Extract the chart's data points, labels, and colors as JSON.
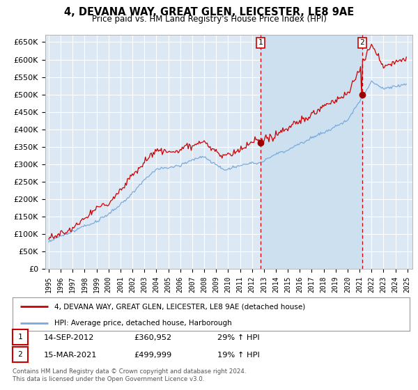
{
  "title": "4, DEVANA WAY, GREAT GLEN, LEICESTER, LE8 9AE",
  "subtitle": "Price paid vs. HM Land Registry's House Price Index (HPI)",
  "ylim": [
    0,
    670000
  ],
  "yticks": [
    0,
    50000,
    100000,
    150000,
    200000,
    250000,
    300000,
    350000,
    400000,
    450000,
    500000,
    550000,
    600000,
    650000
  ],
  "fig_bg_color": "#ffffff",
  "plot_bg_color": "#dce9f5",
  "shade_bg_color": "#cce0f0",
  "grid_color": "#ffffff",
  "sale1_date_num": 2012.708,
  "sale1_price": 360952,
  "sale1_label": "1",
  "sale2_date_num": 2021.208,
  "sale2_price": 499999,
  "sale2_label": "2",
  "legend_line1": "4, DEVANA WAY, GREAT GLEN, LEICESTER, LE8 9AE (detached house)",
  "legend_line2": "HPI: Average price, detached house, Harborough",
  "table_row1": [
    "1",
    "14-SEP-2012",
    "£360,952",
    "29% ↑ HPI"
  ],
  "table_row2": [
    "2",
    "15-MAR-2021",
    "£499,999",
    "19% ↑ HPI"
  ],
  "footer": "Contains HM Land Registry data © Crown copyright and database right 2024.\nThis data is licensed under the Open Government Licence v3.0.",
  "line_color_red": "#cc0000",
  "line_color_blue": "#7aaadd",
  "vline_color": "#cc0000",
  "marker_color": "#990000",
  "xstart": 1995,
  "xend": 2025
}
